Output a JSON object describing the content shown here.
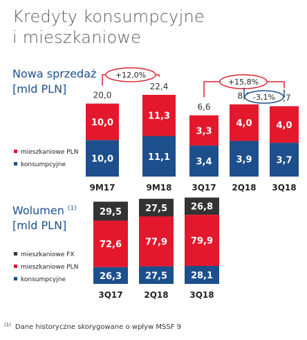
{
  "page": {
    "title_line1": "Kredyty konsumpcyjne",
    "title_line2": "i mieszkaniowe",
    "footnote_mark": "(1)",
    "footnote_text": "Dane historyczne skorygowane o wpływ MSSF 9"
  },
  "colors": {
    "konsumpcyjne": "#1d4f8c",
    "mieszkaniowe_pln": "#e3182d",
    "mieszkaniowe_fx": "#333333",
    "annotation": "#d9232e",
    "annotation_blue": "#1d4f8c"
  },
  "chart_data": [
    {
      "type": "bar",
      "stacked": true,
      "title_line1": "Nowa sprzedaż",
      "title_line2": "[mld PLN]",
      "categories": [
        "9M17",
        "9M18",
        "3Q17",
        "2Q18",
        "3Q18"
      ],
      "series": [
        {
          "name": "konsumpcyjne",
          "values": [
            10.0,
            11.1,
            3.4,
            3.9,
            3.7
          ]
        },
        {
          "name": "mieszkaniowe PLN",
          "values": [
            10.0,
            11.3,
            3.3,
            4.0,
            4.0
          ]
        }
      ],
      "value_labels": {
        "konsumpcyjne": [
          "10,0",
          "11,1",
          "3,4",
          "3,9",
          "3,7"
        ],
        "mieszkaniowe PLN": [
          "10,0",
          "11,3",
          "3,3",
          "4,0",
          "4,0"
        ]
      },
      "totals": [
        "20,0",
        "22,4",
        "6,6",
        "8,0",
        "7,7"
      ],
      "annotations": [
        {
          "text": "+12,0%",
          "from": "9M17",
          "to": "9M18"
        },
        {
          "text": "+15,8%",
          "from": "3Q17",
          "to": "3Q18"
        },
        {
          "text": "-3,1%",
          "from": "2Q18",
          "to": "3Q18"
        }
      ],
      "legend": [
        "mieszkaniowe PLN",
        "konsumpcyjne"
      ],
      "legend_position": "left"
    },
    {
      "type": "bar",
      "stacked": true,
      "title_line1": "Wolumen",
      "title_sup": "(1)",
      "title_line2": "[mld PLN]",
      "categories": [
        "3Q17",
        "2Q18",
        "3Q18"
      ],
      "series": [
        {
          "name": "konsumpcyjne",
          "values": [
            26.3,
            27.5,
            28.1
          ]
        },
        {
          "name": "mieszkaniowe PLN",
          "values": [
            72.6,
            77.9,
            79.9
          ]
        },
        {
          "name": "mieszkaniowe FX",
          "values": [
            29.5,
            27.5,
            26.8
          ]
        }
      ],
      "value_labels": {
        "konsumpcyjne": [
          "26,3",
          "27,5",
          "28,1"
        ],
        "mieszkaniowe PLN": [
          "72,6",
          "77,9",
          "79,9"
        ],
        "mieszkaniowe FX": [
          "29,5",
          "27,5",
          "26,8"
        ]
      },
      "legend": [
        "mieszkaniowe FX",
        "mieszkaniowe PLN",
        "konsumpcyjne"
      ],
      "legend_position": "left"
    }
  ]
}
